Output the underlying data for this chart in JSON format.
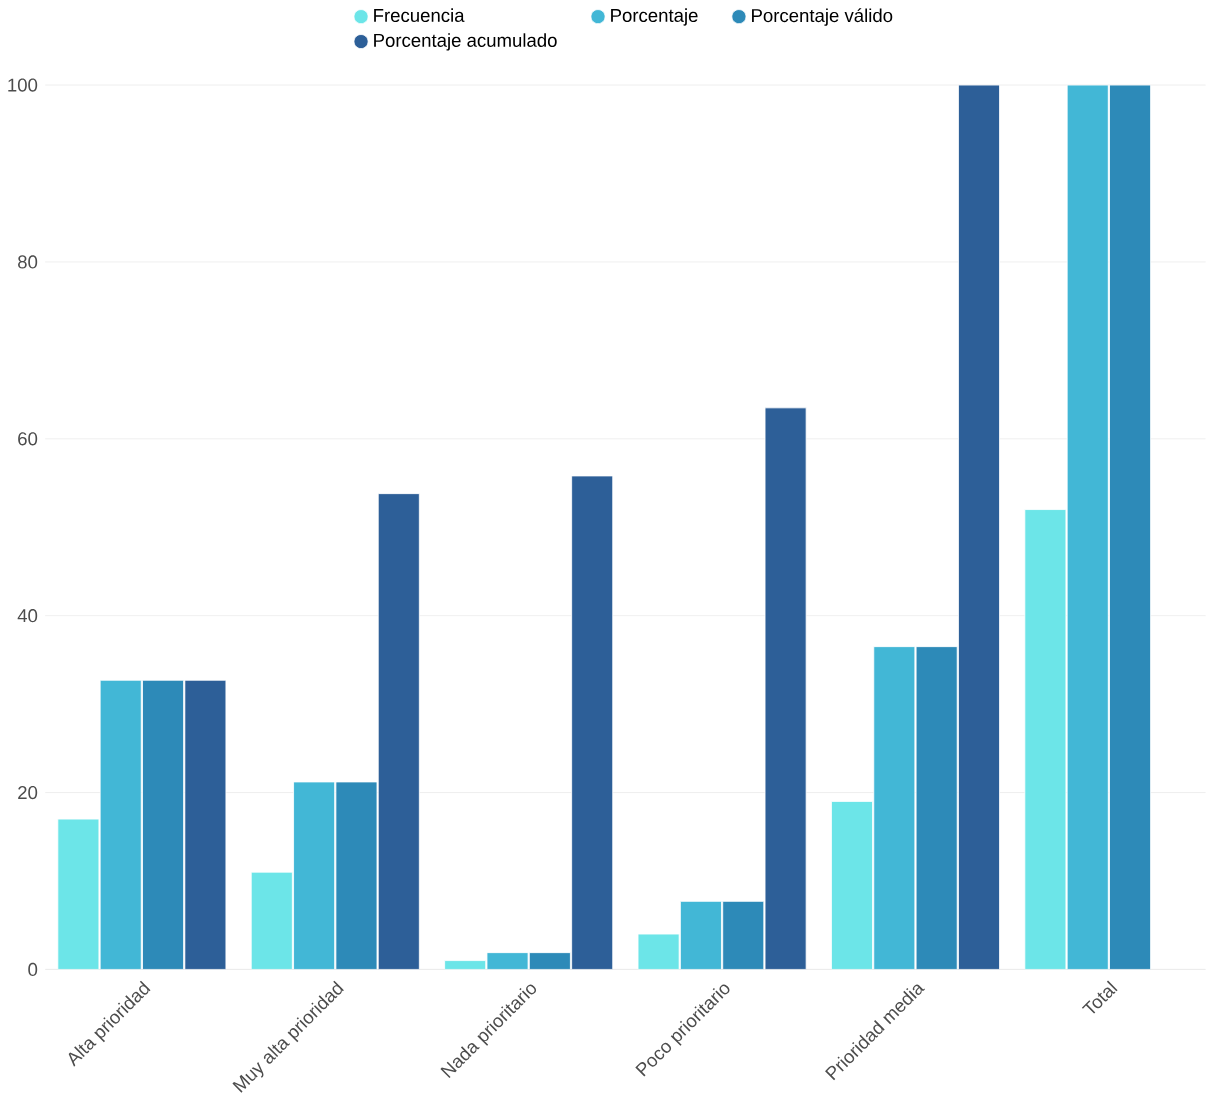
{
  "chart_data": {
    "type": "bar",
    "categories": [
      "Alta prioridad",
      "Muy alta prioridad",
      "Nada prioritario",
      "Poco prioritario",
      "Prioridad media",
      "Total"
    ],
    "series": [
      {
        "name": "Frecuencia",
        "color": "#6ce5e8",
        "values": [
          17,
          11,
          1,
          4,
          19,
          52
        ]
      },
      {
        "name": "Porcentaje",
        "color": "#42b7d6",
        "values": [
          32.7,
          21.2,
          1.9,
          7.7,
          36.5,
          100
        ]
      },
      {
        "name": "Porcentaje válido",
        "color": "#2d8ab8",
        "values": [
          32.7,
          21.2,
          1.9,
          7.7,
          36.5,
          100
        ]
      },
      {
        "name": "Porcentaje acumulado",
        "color": "#2d5f98",
        "values": [
          32.7,
          53.8,
          55.8,
          63.5,
          100,
          null
        ]
      }
    ],
    "ylim": [
      0,
      100
    ],
    "yticks": [
      0,
      20,
      40,
      60,
      80,
      100
    ],
    "grid": "y",
    "legend": "top"
  }
}
